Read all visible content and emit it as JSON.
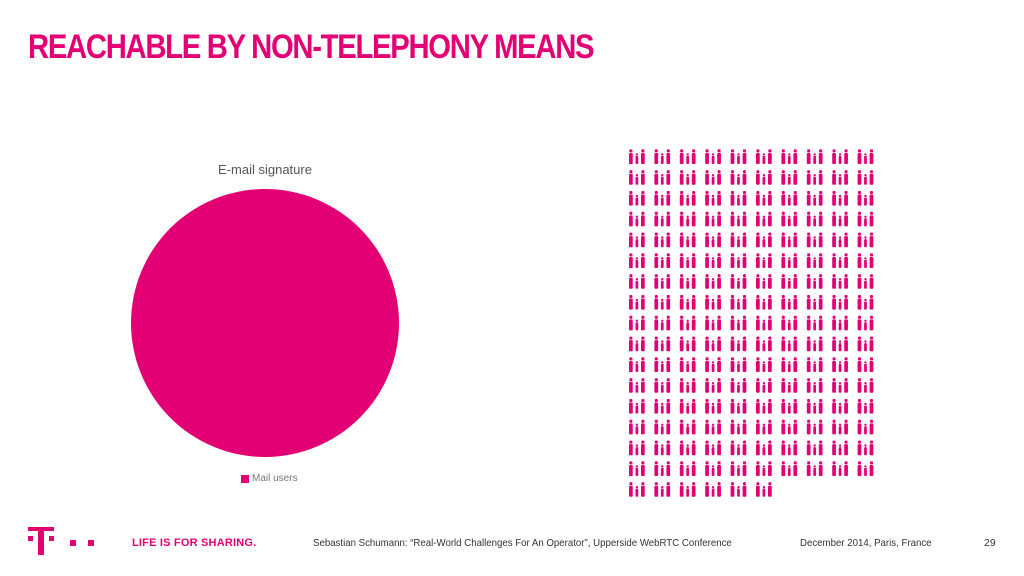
{
  "slide": {
    "title": "REACHABLE BY NON-TELEPHONY MEANS"
  },
  "colors": {
    "accent": "#e20074",
    "text": "#333333"
  },
  "chart_data": [
    {
      "type": "pie",
      "title": "E-mail signature",
      "categories": [
        "Mail users"
      ],
      "values": [
        100
      ],
      "legend_position": "bottom"
    },
    {
      "type": "pictogram",
      "icon": "people-group-icon",
      "count": 166,
      "columns": 10
    }
  ],
  "footer": {
    "logo": "telekom-t-logo",
    "tagline": "LIFE IS FOR SHARING.",
    "citation": "Sebastian Schumann: “Real-World Challenges For An Operator”, Upperside WebRTC Conference",
    "date_location": "December 2014, Paris, France",
    "page_number": "29"
  }
}
